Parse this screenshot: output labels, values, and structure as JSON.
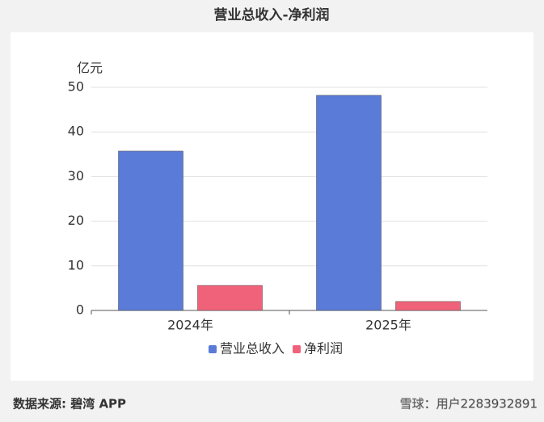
{
  "chart_data": {
    "type": "bar",
    "title": "营业总收入-净利润",
    "y_label": "亿元",
    "categories": [
      "2024年",
      "2025年"
    ],
    "series": [
      {
        "name": "营业总收入",
        "color": "#5b7bd8",
        "values": [
          35.7,
          48.2
        ]
      },
      {
        "name": "净利润",
        "color": "#f0627a",
        "values": [
          5.6,
          2.0
        ]
      }
    ],
    "ylim": [
      0,
      50
    ],
    "yticks": [
      0,
      10,
      20,
      30,
      40,
      50
    ],
    "grid": true,
    "legend": "bottom"
  },
  "footer": {
    "source": "数据来源: 碧湾 APP",
    "watermark": "雪球：用户2283932891"
  }
}
